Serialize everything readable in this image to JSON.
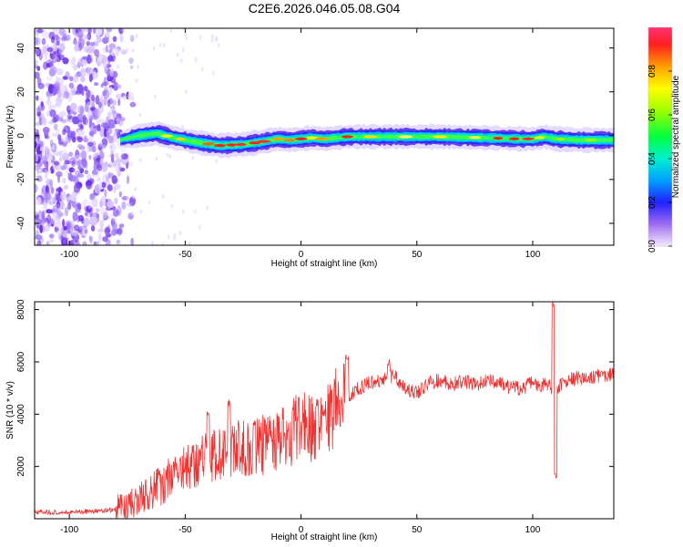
{
  "title": "C2E6.2026.046.05.08.G04",
  "chart_data": [
    {
      "type": "heatmap",
      "name": "spectrogram",
      "xlabel": "Height of straight line (km)",
      "ylabel": "Frequency (Hz)",
      "xlim": [
        -115,
        135
      ],
      "ylim": [
        -50,
        49
      ],
      "xticks": [
        -100,
        -50,
        0,
        50,
        100
      ],
      "xtick_labels": [
        "-100",
        "-50",
        "0",
        "50",
        "100"
      ],
      "yticks": [
        -40,
        -20,
        0,
        20,
        40
      ],
      "ytick_labels": [
        "-40",
        "-20",
        "0",
        "20",
        "40"
      ],
      "noise_region_x": [
        -115,
        -78
      ],
      "ridge_center": {
        "x": [
          -78,
          -70,
          -62,
          -55,
          -45,
          -35,
          -25,
          -18,
          -10,
          -5,
          0,
          5,
          10,
          20,
          40,
          60,
          80,
          95,
          100,
          105,
          110,
          120,
          135
        ],
        "y": [
          -2,
          0,
          1,
          -1,
          -3,
          -4.5,
          -4,
          -3,
          -1.5,
          -2,
          -1.5,
          -1,
          -1.5,
          -0.5,
          -0.5,
          -0.5,
          -1,
          -1.5,
          -1.5,
          -0.5,
          -1.5,
          -2,
          -2
        ]
      },
      "colorbar": {
        "label": "Normalized spectral amplitude",
        "range": [
          0.0,
          1.0
        ],
        "ticks": [
          0.0,
          0.2,
          0.4,
          0.6,
          0.8
        ],
        "tick_labels": [
          "0.0",
          "0.2",
          "0.4",
          "0.6",
          "0.8"
        ]
      }
    },
    {
      "type": "line",
      "name": "snr",
      "color": "#ee3333",
      "xlabel": "Height of straight line (km)",
      "ylabel": "SNR (10 * v/v)",
      "xlim": [
        -115,
        135
      ],
      "ylim": [
        0,
        8300
      ],
      "xticks": [
        -100,
        -50,
        0,
        50,
        100
      ],
      "xtick_labels": [
        "-100",
        "-50",
        "0",
        "50",
        "100"
      ],
      "yticks": [
        2000,
        4000,
        6000,
        8000
      ],
      "ytick_labels": [
        "2000",
        "4000",
        "6000",
        "8000"
      ],
      "trend": {
        "x": [
          -115,
          -100,
          -90,
          -80,
          -75,
          -70,
          -65,
          -60,
          -55,
          -50,
          -45,
          -40,
          -35,
          -30,
          -25,
          -20,
          -15,
          -10,
          -5,
          0,
          5,
          10,
          15,
          20,
          25,
          30,
          35,
          40,
          45,
          50,
          55,
          60,
          65,
          70,
          75,
          80,
          85,
          90,
          95,
          100,
          105,
          110,
          115,
          120,
          125,
          130,
          135
        ],
        "y": [
          250,
          250,
          280,
          350,
          500,
          700,
          1000,
          1300,
          1700,
          2000,
          2100,
          2300,
          2500,
          2600,
          2700,
          2800,
          2850,
          3000,
          3200,
          3600,
          3400,
          3700,
          4300,
          4700,
          5000,
          5200,
          5300,
          5500,
          5000,
          4800,
          5200,
          5300,
          5100,
          5300,
          5100,
          5300,
          5200,
          5000,
          5000,
          5200,
          5100,
          5000,
          5300,
          5400,
          5400,
          5500,
          5500
        ]
      },
      "spikes": [
        {
          "x": -40,
          "y": 4100
        },
        {
          "x": -31,
          "y": 4600
        },
        {
          "x": -20,
          "y": 3800
        },
        {
          "x": 7,
          "y": 4600
        },
        {
          "x": 10,
          "y": 4200
        },
        {
          "x": 20,
          "y": 6300
        },
        {
          "x": 38,
          "y": 6100
        },
        {
          "x": 109,
          "y": 8300
        },
        {
          "x": 110,
          "y": 1800
        }
      ]
    }
  ]
}
